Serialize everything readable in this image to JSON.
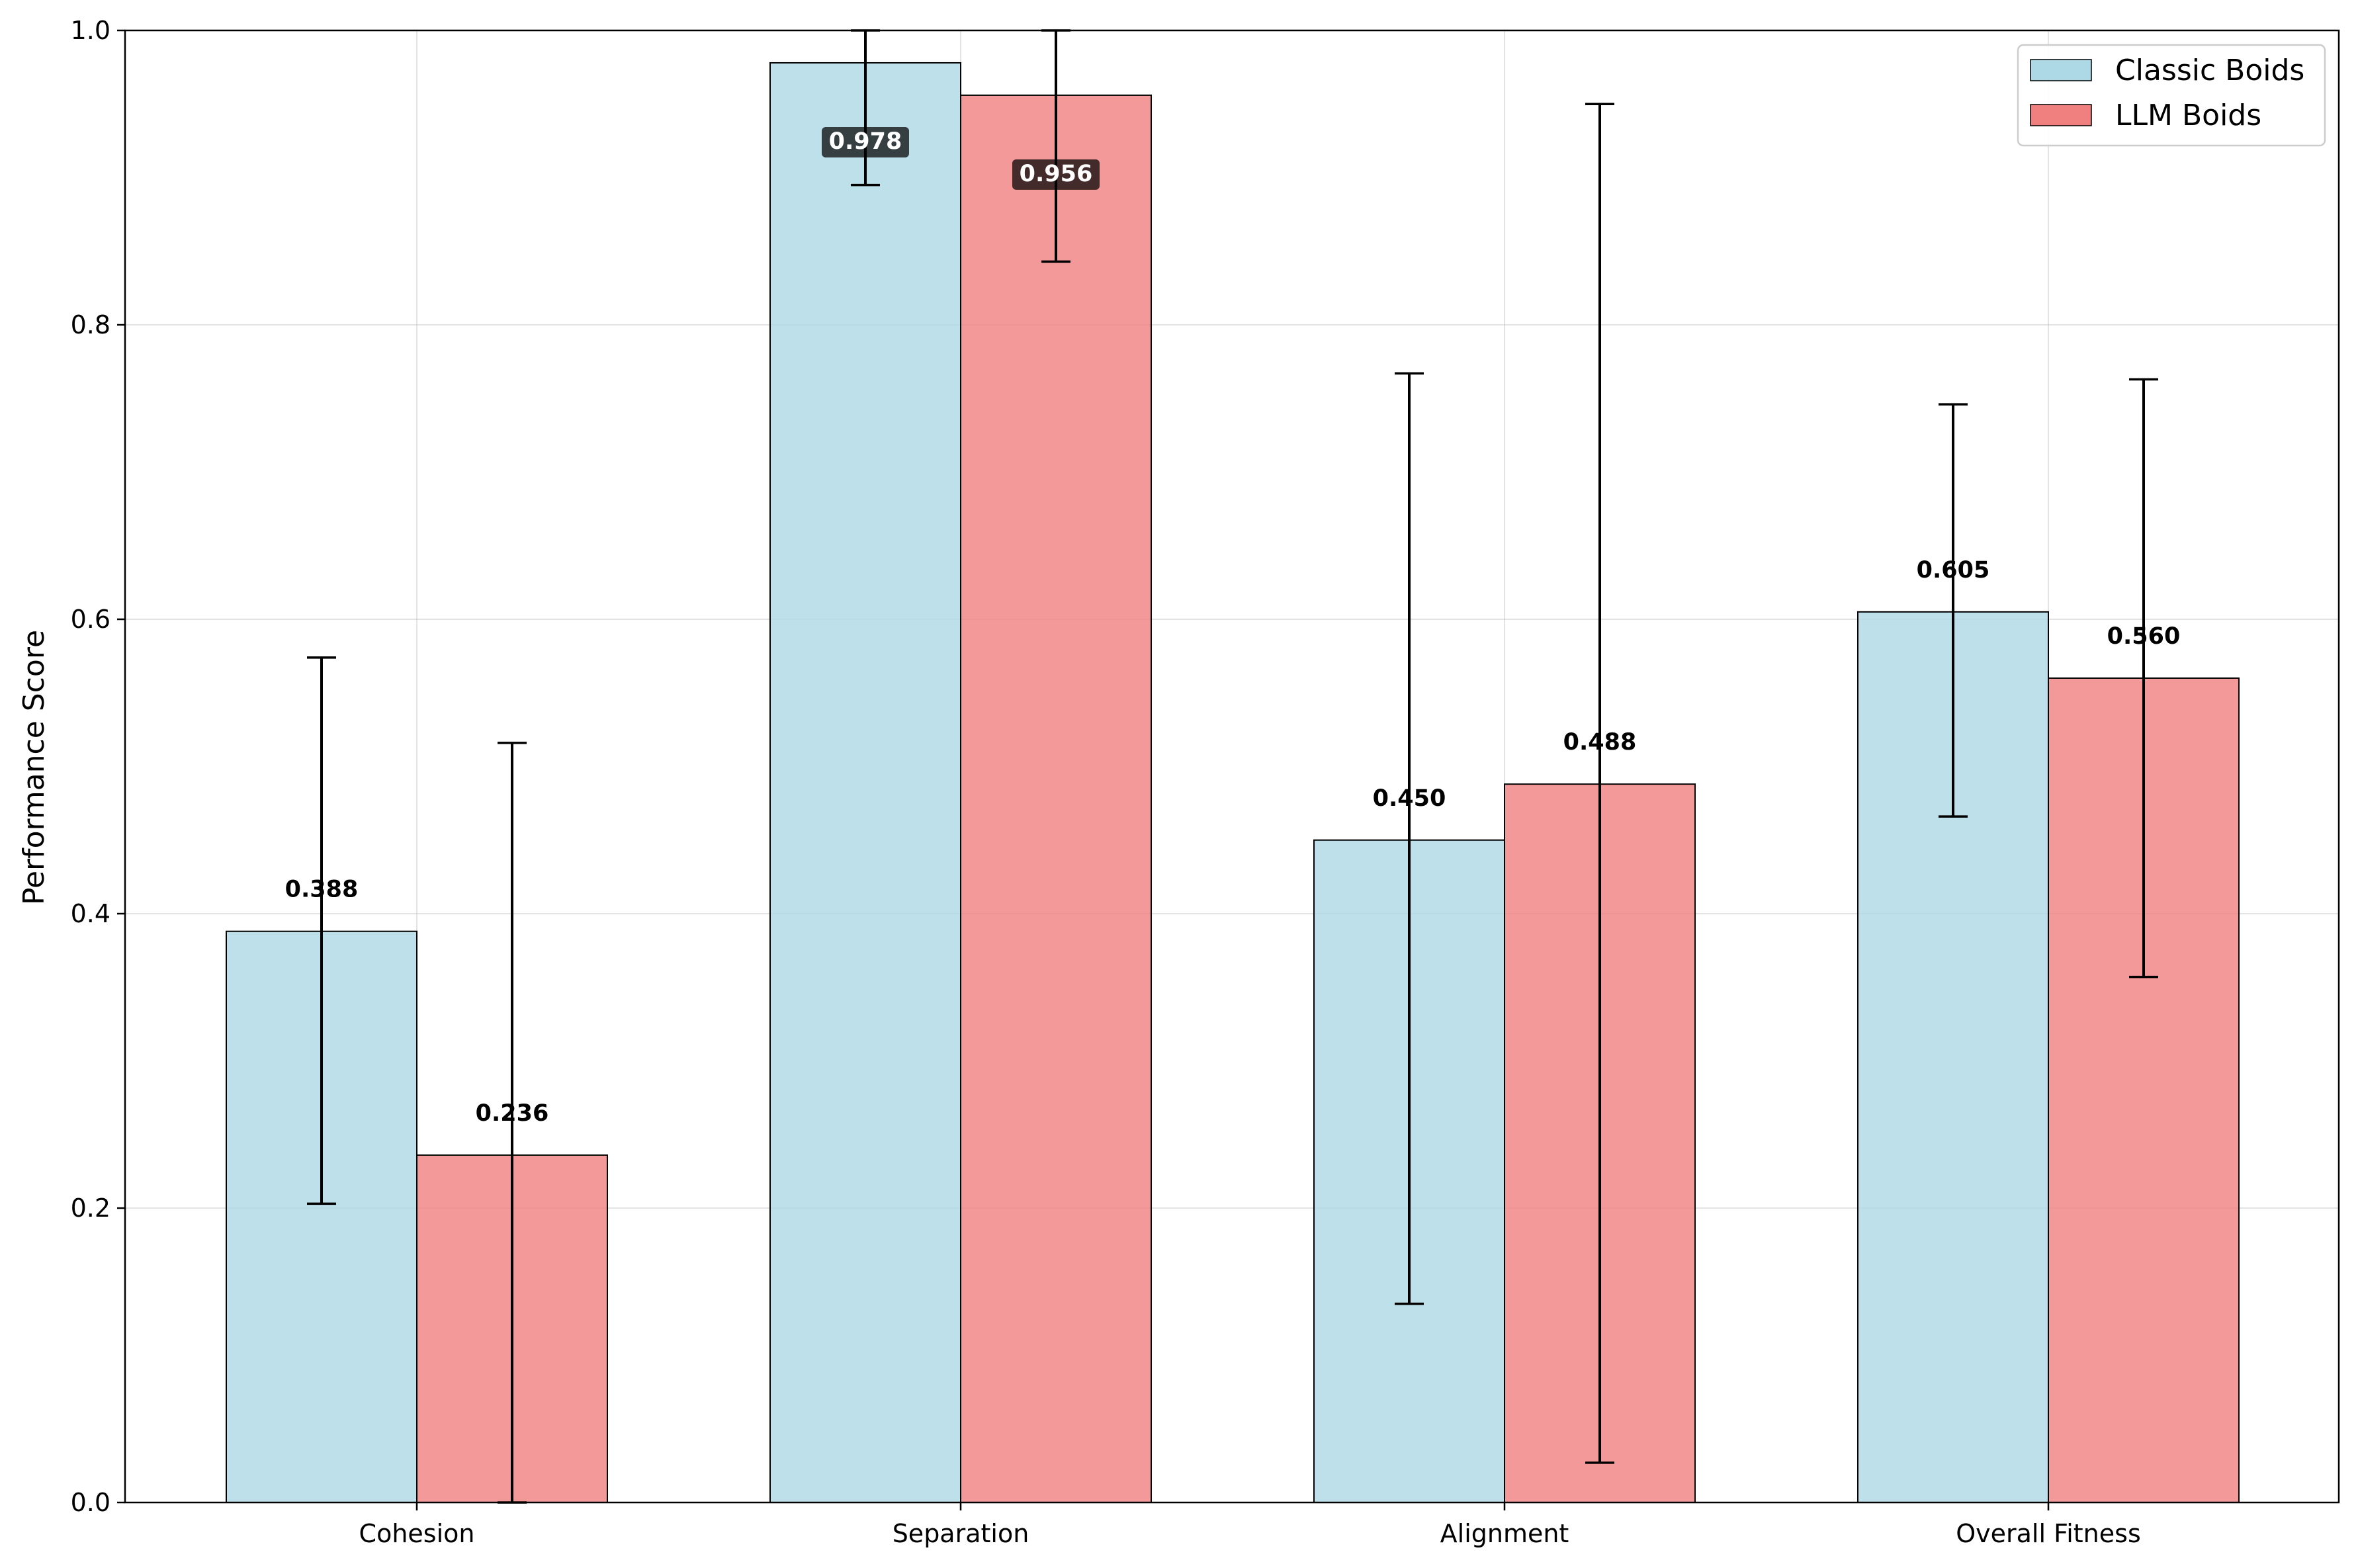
{
  "chart_data": {
    "type": "bar",
    "title": "",
    "xlabel": "",
    "ylabel": "Performance Score",
    "ylim": [
      0,
      1.0
    ],
    "yticks": [
      0.0,
      0.2,
      0.4,
      0.6,
      0.8,
      1.0
    ],
    "ytick_labels": [
      "0.0",
      "0.2",
      "0.4",
      "0.6",
      "0.8",
      "1.0"
    ],
    "grid": true,
    "legend_position": "top-right",
    "categories": [
      "Cohesion",
      "Separation",
      "Alignment",
      "Overall Fitness"
    ],
    "series": [
      {
        "name": "Classic Boids",
        "color": "#add8e6",
        "values": [
          0.388,
          0.978,
          0.45,
          0.605
        ],
        "labels": [
          "0.388",
          "0.978",
          "0.450",
          "0.605"
        ],
        "err_low": [
          0.203,
          0.895,
          0.135,
          0.466
        ],
        "err_high": [
          0.574,
          1.0,
          0.767,
          0.746
        ]
      },
      {
        "name": "LLM Boids",
        "color": "#f08080",
        "values": [
          0.236,
          0.956,
          0.488,
          0.56
        ],
        "labels": [
          "0.236",
          "0.956",
          "0.488",
          "0.560"
        ],
        "err_low": [
          0.0,
          0.843,
          0.027,
          0.357
        ],
        "err_high": [
          0.516,
          1.0,
          0.95,
          0.763
        ]
      }
    ],
    "label_boxed": [
      false,
      true,
      false,
      false
    ]
  }
}
